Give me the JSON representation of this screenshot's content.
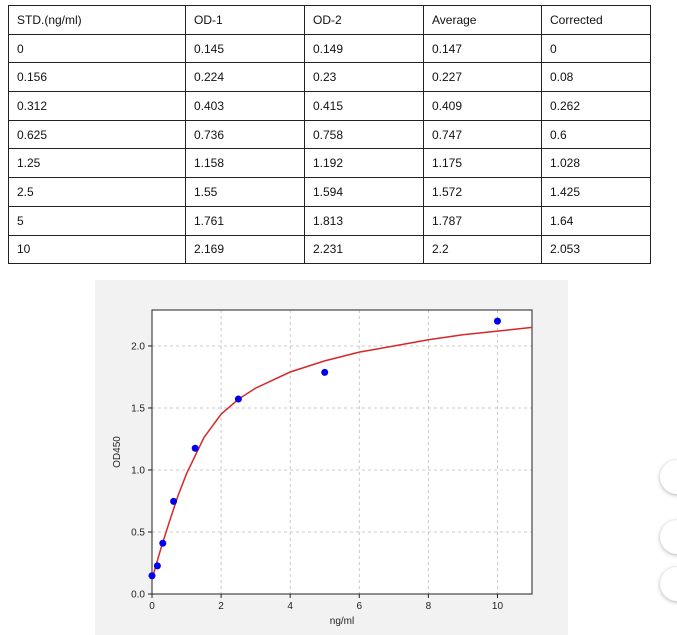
{
  "table": {
    "header": [
      "STD.(ng/ml)",
      "OD-1",
      "OD-2",
      "Average",
      "Corrected"
    ],
    "rows": [
      [
        "0",
        "0.145",
        "0.149",
        "0.147",
        "0"
      ],
      [
        "0.156",
        "0.224",
        "0.23",
        "0.227",
        "0.08"
      ],
      [
        "0.312",
        "0.403",
        "0.415",
        "0.409",
        "0.262"
      ],
      [
        "0.625",
        "0.736",
        "0.758",
        "0.747",
        "0.6"
      ],
      [
        "1.25",
        "1.158",
        "1.192",
        "1.175",
        "1.028"
      ],
      [
        "2.5",
        "1.55",
        "1.594",
        "1.572",
        "1.425"
      ],
      [
        "5",
        "1.761",
        "1.813",
        "1.787",
        "1.64"
      ],
      [
        "10",
        "2.169",
        "2.231",
        "2.2",
        "2.053"
      ]
    ]
  },
  "chart_data": {
    "type": "scatter",
    "x_label": "ng/ml",
    "y_label": "OD450",
    "x": [
      0,
      0.156,
      0.312,
      0.625,
      1.25,
      2.5,
      5,
      10
    ],
    "values": [
      0.147,
      0.227,
      0.409,
      0.747,
      1.175,
      1.572,
      1.787,
      2.2
    ],
    "color": "#0000ee",
    "fit_line": {
      "color": "#d62728",
      "x": [
        0,
        0.25,
        0.5,
        0.75,
        1,
        1.5,
        2,
        2.5,
        3,
        4,
        5,
        6,
        7,
        8,
        9,
        10,
        11
      ],
      "values": [
        0.12,
        0.36,
        0.58,
        0.79,
        0.97,
        1.26,
        1.45,
        1.57,
        1.66,
        1.79,
        1.88,
        1.95,
        2.0,
        2.05,
        2.09,
        2.12,
        2.15
      ]
    },
    "xlim": [
      0,
      11
    ],
    "ylim": [
      0,
      2.29
    ],
    "xticks": [
      0,
      2,
      4,
      6,
      8,
      10
    ],
    "yticks": [
      {
        "value": 0,
        "label": "0.0"
      },
      {
        "value": 0.5,
        "label": "0.5"
      },
      {
        "value": 1,
        "label": "1.0"
      },
      {
        "value": 1.5,
        "label": "1.5"
      },
      {
        "value": 2,
        "label": "2.0"
      }
    ],
    "grid": true
  }
}
